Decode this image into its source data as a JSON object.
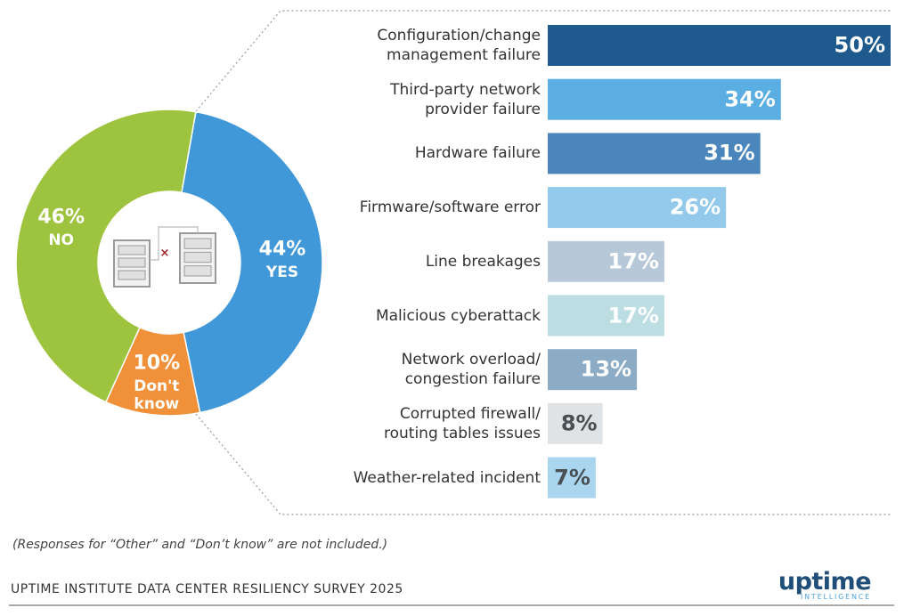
{
  "chart_data": [
    {
      "type": "pie",
      "categories": [
        "YES",
        "Don't\nknow",
        "NO"
      ],
      "values": [
        44,
        10,
        46
      ],
      "value_labels": [
        "44%",
        "10%",
        "46%"
      ],
      "colors": [
        "#4198d9",
        "#f0913a",
        "#9dc33f"
      ]
    },
    {
      "type": "hbar",
      "categories": [
        "Configuration/change\nmanagement failure",
        "Third-party network\nprovider failure",
        "Hardware failure",
        "Firmware/software error",
        "Line breakages",
        "Malicious cyberattack",
        "Network overload/\ncongestion failure",
        "Corrupted firewall/\nrouting tables issues",
        "Weather-related incident"
      ],
      "values": [
        50,
        34,
        31,
        26,
        17,
        17,
        13,
        8,
        7
      ],
      "value_labels": [
        "50%",
        "34%",
        "31%",
        "26%",
        "17%",
        "17%",
        "13%",
        "8%",
        "7%"
      ],
      "colors": [
        "#1f5a8f",
        "#5aaee2",
        "#4a86bc",
        "#93c9ea",
        "#b7c9d9",
        "#bcdde2",
        "#8cabc5",
        "#dfe3e5",
        "#a9d6ee"
      ],
      "xlim": [
        0,
        50
      ]
    }
  ],
  "footnote": "(Responses for “Other” and “Don’t know” are not included.)",
  "source": "UPTIME INSTITUTE DATA CENTER RESILIENCY SURVEY 2025",
  "logo": {
    "name": "uptime",
    "subtitle": "INTELLIGENCE"
  }
}
